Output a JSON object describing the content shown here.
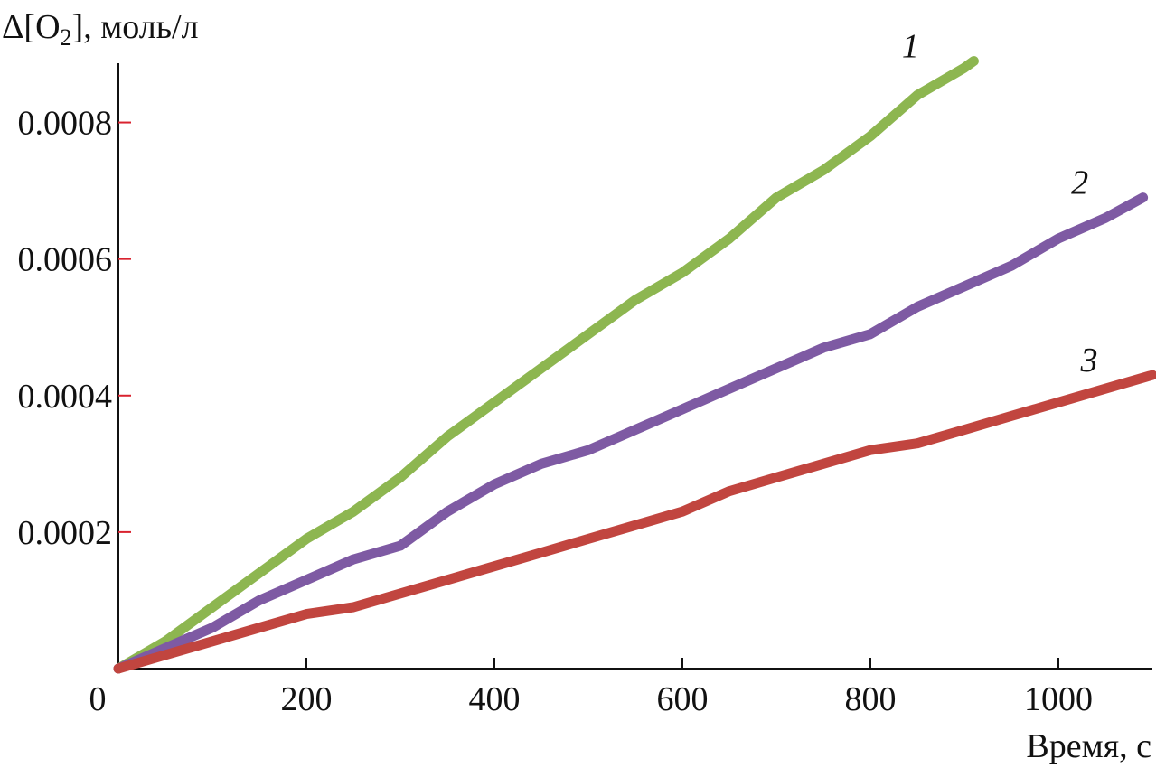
{
  "chart_data": {
    "type": "line",
    "title": "",
    "xlabel": "Время, с",
    "ylabel_prefix": "Δ[O",
    "ylabel_sub": "2",
    "ylabel_suffix": "], моль/л",
    "xlim": [
      0,
      1100
    ],
    "ylim": [
      0,
      0.0009
    ],
    "xticks": [
      0,
      200,
      400,
      600,
      800,
      1000
    ],
    "xtick_labels": [
      "0",
      "200",
      "400",
      "600",
      "800",
      "1000"
    ],
    "yticks": [
      0.0002,
      0.0004,
      0.0006,
      0.0008
    ],
    "ytick_labels": [
      "0.0002",
      "0.0004",
      "0.0006",
      "0.0008"
    ],
    "grid": false,
    "colors": {
      "axis": "#111111",
      "ytick_mark": "#d9232f"
    },
    "series": [
      {
        "name": "1",
        "color": "#8db650",
        "x": [
          0,
          50,
          100,
          150,
          200,
          250,
          300,
          350,
          400,
          450,
          500,
          550,
          600,
          650,
          700,
          750,
          800,
          850,
          900,
          910
        ],
        "y": [
          0.0,
          4e-05,
          9e-05,
          0.00014,
          0.00019,
          0.00023,
          0.00028,
          0.00034,
          0.00039,
          0.00044,
          0.00049,
          0.00054,
          0.00058,
          0.00063,
          0.00069,
          0.00073,
          0.00078,
          0.00084,
          0.00088,
          0.00089
        ]
      },
      {
        "name": "2",
        "color": "#7e5aa3",
        "x": [
          0,
          50,
          100,
          150,
          200,
          250,
          300,
          320,
          350,
          400,
          450,
          500,
          550,
          600,
          650,
          700,
          750,
          800,
          850,
          900,
          950,
          1000,
          1050,
          1090
        ],
        "y": [
          0.0,
          3e-05,
          6e-05,
          0.0001,
          0.00013,
          0.00016,
          0.00018,
          0.0002,
          0.00023,
          0.00027,
          0.0003,
          0.00032,
          0.00035,
          0.00038,
          0.00041,
          0.00044,
          0.00047,
          0.00049,
          0.00053,
          0.00056,
          0.00059,
          0.00063,
          0.00066,
          0.00069
        ]
      },
      {
        "name": "3",
        "color": "#c1453f",
        "x": [
          0,
          50,
          100,
          150,
          200,
          250,
          300,
          350,
          400,
          450,
          500,
          550,
          600,
          650,
          700,
          750,
          800,
          850,
          900,
          950,
          1000,
          1050,
          1100
        ],
        "y": [
          0.0,
          2e-05,
          4e-05,
          6e-05,
          8e-05,
          9e-05,
          0.00011,
          0.00013,
          0.00015,
          0.00017,
          0.00019,
          0.00021,
          0.00023,
          0.00026,
          0.00028,
          0.0003,
          0.00032,
          0.00033,
          0.00035,
          0.00037,
          0.00039,
          0.00041,
          0.00043
        ]
      }
    ]
  }
}
